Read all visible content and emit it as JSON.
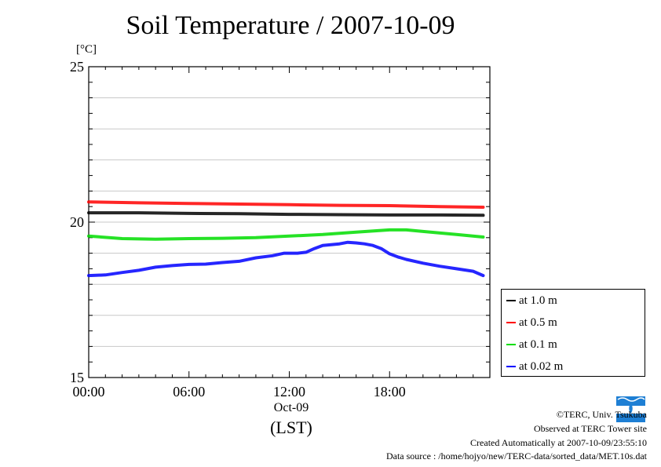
{
  "chart_data": {
    "type": "line",
    "title": "Soil Temperature / 2007-10-09",
    "ylabel_unit": "[°C]",
    "ylim": [
      15,
      25
    ],
    "yticks": [
      "15",
      "20",
      "25"
    ],
    "xlim": [
      0,
      24
    ],
    "xticks": [
      {
        "x": 0,
        "label": "00:00"
      },
      {
        "x": 6,
        "label": "06:00"
      },
      {
        "x": 12,
        "label": "12:00"
      },
      {
        "x": 18,
        "label": "18:00"
      }
    ],
    "date_label": "Oct-09",
    "xlabel": "(LST)",
    "grid": true,
    "legend_position": "right-bottom",
    "series": [
      {
        "name": "at 1.0 m",
        "color": "#000000",
        "x": [
          0,
          3,
          6,
          9,
          12,
          15,
          18,
          21,
          23.6
        ],
        "y": [
          20.3,
          20.3,
          20.28,
          20.27,
          20.25,
          20.24,
          20.23,
          20.23,
          20.22
        ]
      },
      {
        "name": "at 0.5 m",
        "color": "#ff0000",
        "x": [
          0,
          3,
          6,
          9,
          12,
          15,
          18,
          21,
          23.6
        ],
        "y": [
          20.65,
          20.62,
          20.6,
          20.58,
          20.56,
          20.54,
          20.53,
          20.5,
          20.48
        ]
      },
      {
        "name": "at 0.1 m",
        "color": "#00dd00",
        "x": [
          0,
          2,
          4,
          6,
          8,
          10,
          12,
          14,
          16,
          18,
          19,
          20,
          22,
          23.6
        ],
        "y": [
          19.55,
          19.47,
          19.45,
          19.47,
          19.48,
          19.5,
          19.55,
          19.6,
          19.68,
          19.75,
          19.75,
          19.7,
          19.6,
          19.52
        ]
      },
      {
        "name": "at 0.02 m",
        "color": "#0000ff",
        "x": [
          0,
          1,
          2,
          3,
          4,
          5,
          6,
          7,
          8,
          9,
          10,
          11,
          11.7,
          12.5,
          13,
          13.5,
          14,
          15,
          15.5,
          16,
          16.5,
          17,
          17.5,
          18,
          18.5,
          19,
          20,
          21,
          22,
          23,
          23.6
        ],
        "y": [
          18.28,
          18.3,
          18.38,
          18.45,
          18.55,
          18.6,
          18.64,
          18.65,
          18.7,
          18.74,
          18.85,
          18.92,
          19.0,
          19.0,
          19.03,
          19.15,
          19.25,
          19.3,
          19.35,
          19.33,
          19.3,
          19.25,
          19.15,
          18.98,
          18.88,
          18.8,
          18.68,
          18.58,
          18.5,
          18.42,
          18.28
        ]
      }
    ]
  },
  "footer": {
    "copyright": "©TERC, Univ. Tsukuba",
    "site": "Observed at TERC Tower site",
    "created": "Created Automatically at 2007-10-09/23:55:10",
    "source": "Data source : /home/hojyo/new/TERC-data/sorted_data/MET.10s.dat"
  },
  "logo": {
    "icon": "terc-logo",
    "text": "TERC",
    "color": "#1e7fd4"
  }
}
